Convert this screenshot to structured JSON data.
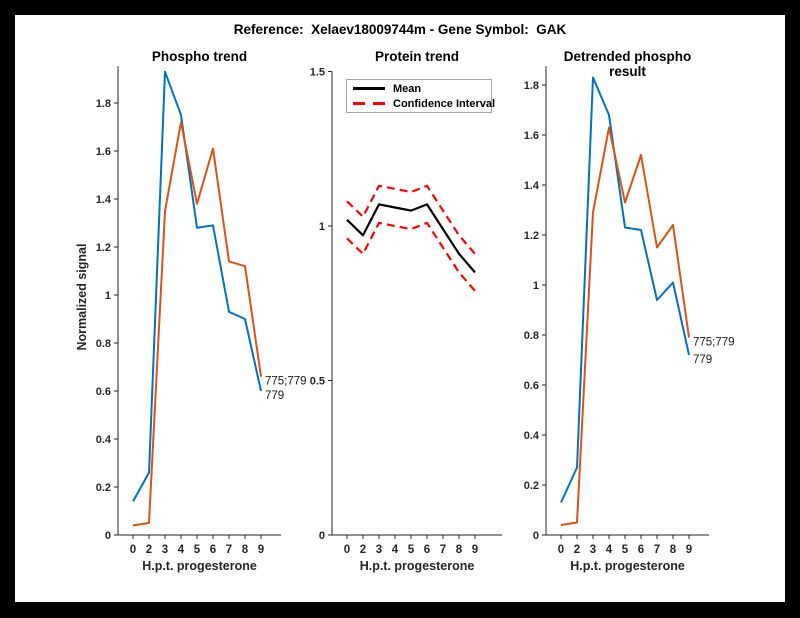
{
  "figure": {
    "title": "Reference:  Xelaev18009744m - Gene Symbol:  GAK",
    "background": "#ffffff",
    "frame_color": "#000000"
  },
  "colors": {
    "blue": "#0072BD",
    "orange": "#D95319",
    "red": "#FF0000",
    "black": "#000000",
    "axis": "#262626"
  },
  "legend": {
    "position": "top-left of middle plot",
    "items": [
      {
        "label": "Mean",
        "style": "solid",
        "color": "#000000"
      },
      {
        "label": "Confidence Interval",
        "style": "dashed",
        "color": "#FF0000"
      }
    ]
  },
  "chart_data": [
    {
      "type": "line",
      "title": "Phospho trend",
      "xlabel": "H.p.t. progesterone",
      "ylabel": "Normalized signal",
      "categories": [
        "0",
        "2",
        "3",
        "4",
        "5",
        "6",
        "7",
        "8",
        "9"
      ],
      "ytick_labels": [
        "0",
        "0.2",
        "0.4",
        "0.6",
        "0.8",
        "1",
        "1.2",
        "1.4",
        "1.6",
        "1.8"
      ],
      "ylim": [
        0,
        1.95
      ],
      "grid": false,
      "label_lines": true,
      "series": [
        {
          "name": "779",
          "color": "#0072BD",
          "style": "solid",
          "values": [
            0.14,
            0.26,
            1.93,
            1.75,
            1.28,
            1.29,
            0.93,
            0.9,
            0.6
          ]
        },
        {
          "name": "775;779",
          "color": "#D95319",
          "style": "solid",
          "values": [
            0.04,
            0.05,
            1.35,
            1.72,
            1.38,
            1.61,
            1.14,
            1.12,
            0.66
          ]
        }
      ]
    },
    {
      "type": "line",
      "title": "Protein trend",
      "xlabel": "H.p.t. progesterone",
      "ylabel": "",
      "categories": [
        "0",
        "2",
        "3",
        "4",
        "5",
        "6",
        "7",
        "8",
        "9"
      ],
      "ytick_labels": [
        "0",
        "0.5",
        "1",
        "1.5"
      ],
      "ylim": [
        0,
        1.5
      ],
      "grid": false,
      "label_lines": false,
      "series": [
        {
          "name": "Mean",
          "color": "#000000",
          "style": "solid",
          "values": [
            1.02,
            0.97,
            1.07,
            1.06,
            1.05,
            1.07,
            0.99,
            0.91,
            0.85
          ]
        },
        {
          "name": "Confidence Interval upper",
          "color": "#FF0000",
          "style": "dashed",
          "values": [
            1.08,
            1.03,
            1.13,
            1.12,
            1.11,
            1.13,
            1.05,
            0.97,
            0.91
          ]
        },
        {
          "name": "Confidence Interval lower",
          "color": "#FF0000",
          "style": "dashed",
          "values": [
            0.96,
            0.91,
            1.01,
            1.0,
            0.99,
            1.01,
            0.93,
            0.85,
            0.79
          ]
        }
      ]
    },
    {
      "type": "line",
      "title": "Detrended phospho result",
      "xlabel": "H.p.t. progesterone",
      "ylabel": "",
      "categories": [
        "0",
        "2",
        "3",
        "4",
        "5",
        "6",
        "7",
        "8",
        "9"
      ],
      "ytick_labels": [
        "0",
        "0.2",
        "0.4",
        "0.6",
        "0.8",
        "1",
        "1.2",
        "1.4",
        "1.6",
        "1.8"
      ],
      "ylim": [
        0,
        1.88
      ],
      "grid": false,
      "label_lines": true,
      "series": [
        {
          "name": "779",
          "color": "#0072BD",
          "style": "solid",
          "values": [
            0.13,
            0.27,
            1.83,
            1.68,
            1.23,
            1.22,
            0.94,
            1.01,
            0.72
          ]
        },
        {
          "name": "775;779",
          "color": "#D95319",
          "style": "solid",
          "values": [
            0.04,
            0.05,
            1.29,
            1.63,
            1.33,
            1.52,
            1.15,
            1.24,
            0.79
          ]
        }
      ]
    }
  ]
}
